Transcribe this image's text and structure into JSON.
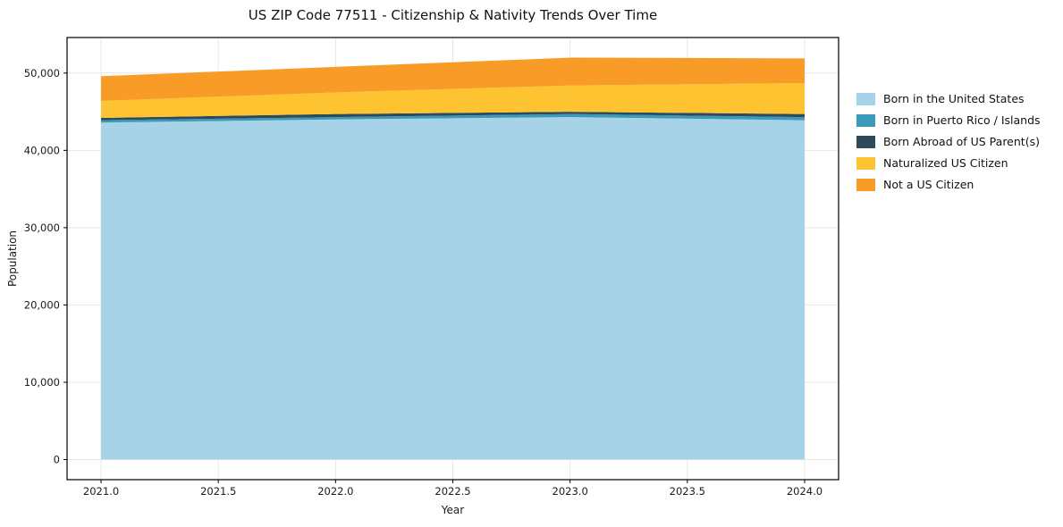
{
  "title": "US ZIP Code 77511 - Citizenship & Nativity Trends Over Time",
  "chart_data": {
    "type": "area",
    "stacked": true,
    "x": [
      2021,
      2022,
      2023,
      2024
    ],
    "series": [
      {
        "name": "Born in the United States",
        "color": "#a7d3e8",
        "values": [
          43600,
          44000,
          44300,
          43900
        ]
      },
      {
        "name": "Born in Puerto Rico / Islands",
        "color": "#3b9ab8",
        "values": [
          300,
          300,
          400,
          400
        ]
      },
      {
        "name": "Born Abroad of US Parent(s)",
        "color": "#2d4a5a",
        "values": [
          300,
          400,
          300,
          400
        ]
      },
      {
        "name": "Naturalized US Citizen",
        "color": "#fdc330",
        "values": [
          2200,
          2800,
          3400,
          4000
        ]
      },
      {
        "name": "Not a US Citizen",
        "color": "#f89b27",
        "values": [
          3200,
          3300,
          3600,
          3200
        ]
      }
    ],
    "xlabel": "Year",
    "ylabel": "Population",
    "xlim": [
      2020.855,
      2024.145
    ],
    "ylim": [
      -2600,
      54600
    ],
    "xticks": [
      2021.0,
      2021.5,
      2022.0,
      2022.5,
      2023.0,
      2023.5,
      2024.0
    ],
    "yticks": [
      0,
      10000,
      20000,
      30000,
      40000,
      50000
    ],
    "grid": true,
    "grid_color": "#e7e7e7",
    "spine_color": "#000000",
    "legend_position": "center-right-outside"
  }
}
